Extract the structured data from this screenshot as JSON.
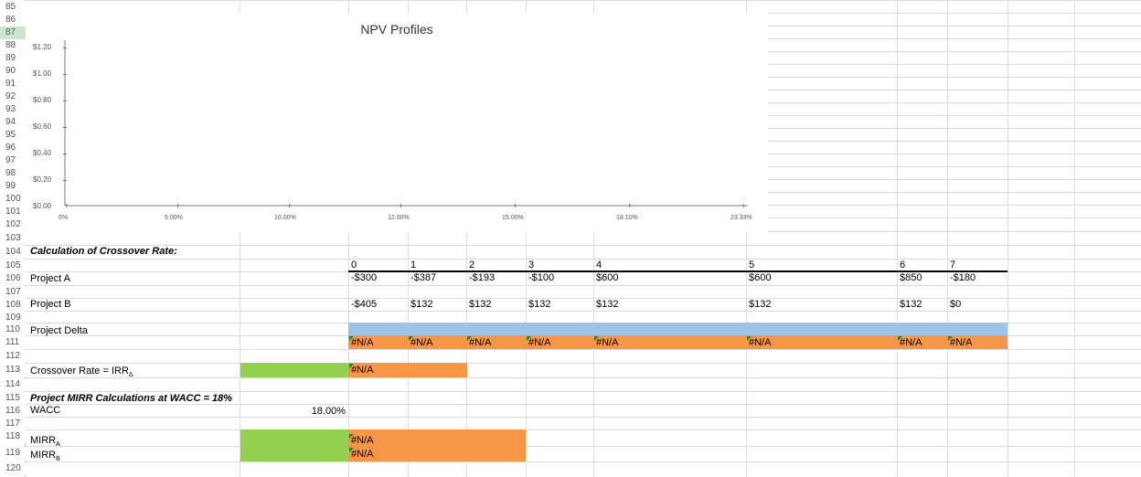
{
  "rows": [
    "85",
    "86",
    "87",
    "88",
    "89",
    "90",
    "91",
    "92",
    "93",
    "94",
    "95",
    "96",
    "97",
    "98",
    "99",
    "100",
    "101",
    "102",
    "103",
    "104",
    "105",
    "106",
    "107",
    "108",
    "109",
    "110",
    "111",
    "112",
    "113",
    "114",
    "115",
    "116",
    "117",
    "118",
    "119",
    "120"
  ],
  "active_row": "87",
  "chart": {
    "title": "NPV Profiles",
    "y_ticks": [
      "$1.20",
      "$1.00",
      "$0.80",
      "$0.60",
      "$0.40",
      "$0.20",
      "$0.00"
    ],
    "x_ticks": [
      "0%",
      "5.00%",
      "10.00%",
      "12.00%",
      "15.00%",
      "18.10%",
      "23.33%"
    ]
  },
  "chart_data": {
    "type": "line",
    "title": "NPV Profiles",
    "categories": [
      "0%",
      "5.00%",
      "10.00%",
      "12.00%",
      "15.00%",
      "18.10%",
      "23.33%"
    ],
    "series": [],
    "ylim": [
      0,
      1.2
    ],
    "y_tick_values": [
      1.2,
      1.0,
      0.8,
      0.6,
      0.4,
      0.2,
      0.0
    ]
  },
  "labels": {
    "crossover_heading": "Calculation of Crossover Rate:",
    "project_a": "Project A",
    "project_b": "Project B",
    "project_delta": "Project Delta",
    "crossover_rate": "Crossover Rate = IRR",
    "crossover_sub": "Δ",
    "mirr_heading": "Project MIRR Calculations at WACC = 18%",
    "wacc": "WACC",
    "wacc_value": "18.00%",
    "mirr": "MIRR",
    "mirr_a_sub": "A",
    "mirr_b_sub": "B"
  },
  "years": [
    "0",
    "1",
    "2",
    "3",
    "4",
    "5",
    "6",
    "7"
  ],
  "project_a": [
    "-$300",
    "-$387",
    "-$193",
    "-$100",
    "$600",
    "$600",
    "$850",
    "-$180"
  ],
  "project_b": [
    "-$405",
    "$132",
    "$132",
    "$132",
    "$132",
    "$132",
    "$132",
    "$0"
  ],
  "project_delta": [
    "#N/A",
    "#N/A",
    "#N/A",
    "#N/A",
    "#N/A",
    "#N/A",
    "#N/A",
    "#N/A"
  ],
  "crossover_value": "#N/A",
  "mirr_a_value": "#N/A",
  "mirr_b_value": "#N/A",
  "colors": {
    "green": "#92d050",
    "orange": "#f79646",
    "blue": "#9dc3e6",
    "grid": "#dadcdf"
  }
}
